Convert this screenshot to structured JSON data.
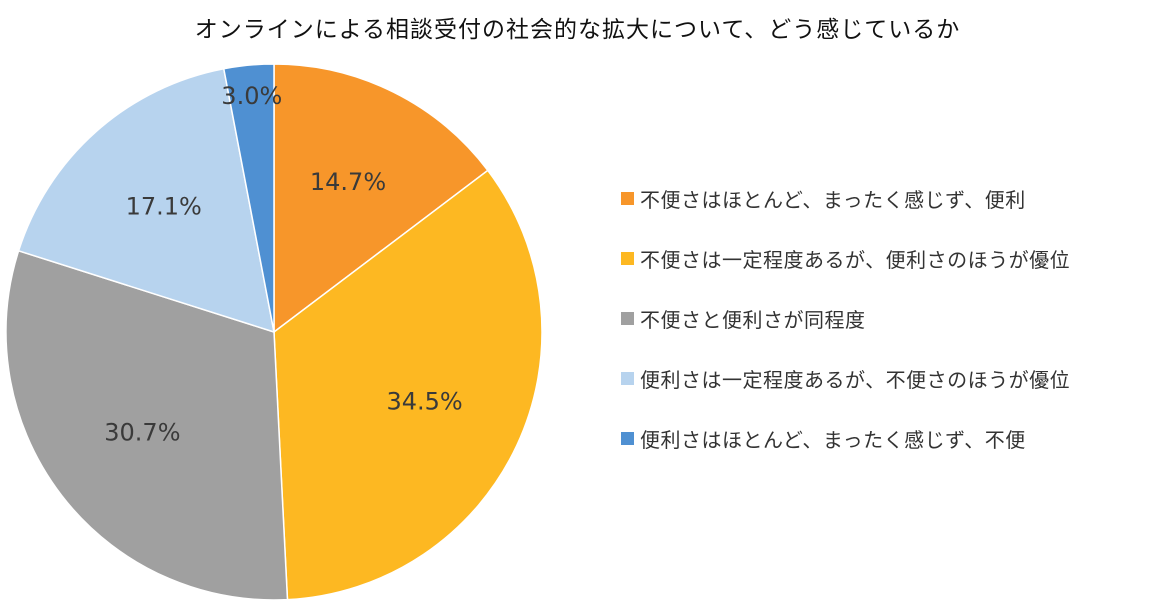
{
  "chart_data": {
    "type": "pie",
    "title": "オンラインによる相談受付の社会的な拡大について、どう感じているか",
    "categories": [
      "不便さはほとんど、まったく感じず、便利",
      "不便さは一定程度あるが、便利さのほうが優位",
      "不便さと便利さが同程度",
      "便利さは一定程度あるが、不便さのほうが優位",
      "便利さはほとんど、まったく感じず、不便"
    ],
    "values": [
      14.7,
      34.5,
      30.7,
      17.1,
      3.0
    ],
    "data_labels": [
      "14.7%",
      "34.5%",
      "30.7%",
      "17.1%",
      "3.0%"
    ],
    "colors": [
      "#F7962A",
      "#FDB822",
      "#A0A0A0",
      "#B7D3EE",
      "#4F90D2"
    ],
    "start": "12 o'clock",
    "direction": "clockwise",
    "legend_position": "right"
  }
}
